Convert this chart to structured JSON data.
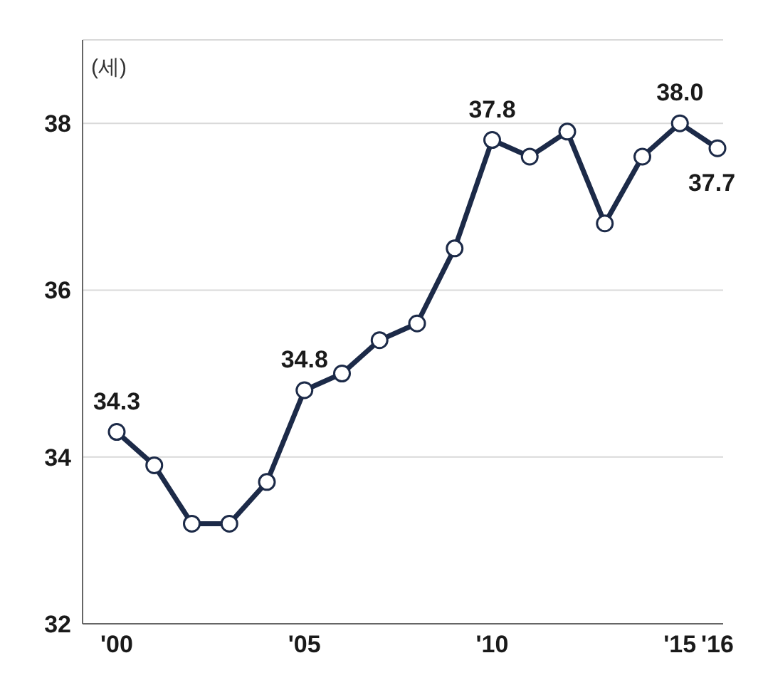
{
  "chart_data": {
    "type": "line",
    "ylabel": "(세)",
    "categories": [
      "'00",
      null,
      null,
      null,
      null,
      "'05",
      null,
      null,
      null,
      null,
      "'10",
      null,
      null,
      null,
      null,
      "'15",
      "'16"
    ],
    "series": [
      {
        "color": "#1c2a48",
        "values": [
          34.3,
          33.9,
          33.2,
          33.2,
          33.7,
          34.8,
          35.0,
          35.4,
          35.6,
          36.5,
          37.8,
          37.6,
          37.9,
          36.8,
          37.6,
          38.0,
          37.7
        ],
        "value_labels": [
          "34.3",
          null,
          null,
          null,
          null,
          "34.8",
          null,
          null,
          null,
          null,
          "37.8",
          null,
          null,
          null,
          null,
          "38.0",
          "37.7"
        ]
      }
    ],
    "ylim": [
      32,
      39
    ],
    "yticks": [
      32,
      34,
      36,
      38
    ],
    "grid": "y",
    "marker": "circle",
    "line_style": "solid"
  }
}
